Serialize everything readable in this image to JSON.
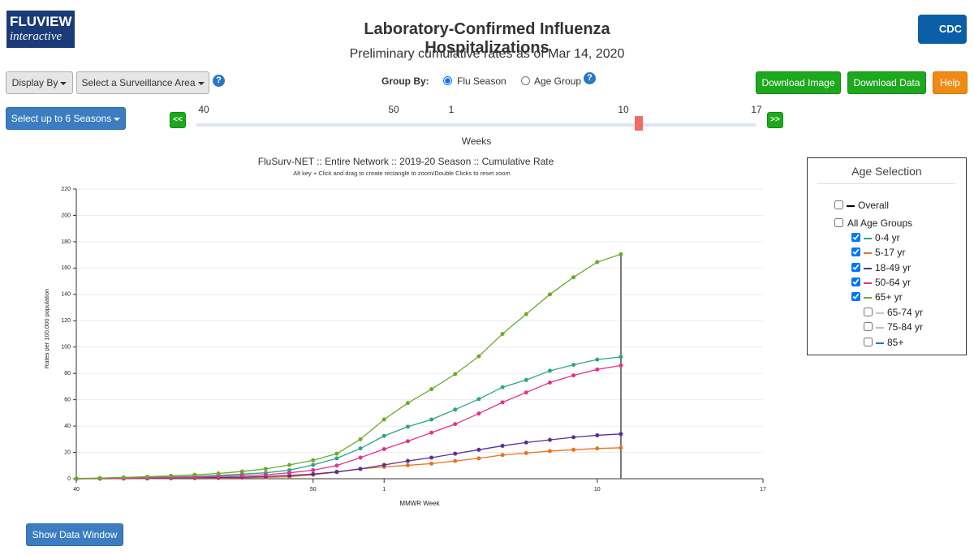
{
  "header": {
    "logo_title": "FLUVIEW",
    "logo_subtitle": "interactive",
    "title": "Laboratory-Confirmed Influenza Hospitalizations",
    "subtitle": "Preliminary cumulative rates as of Mar 14, 2020",
    "agency_logo": "CDC"
  },
  "help_icon": "?",
  "toolbar": {
    "display_by": "Display By",
    "surveillance_area": "Select a Surveillance Area",
    "group_by_label": "Group By:",
    "group_by_options": [
      {
        "label": "Flu Season",
        "selected": true
      },
      {
        "label": "Age Group",
        "selected": false
      }
    ],
    "download_image": "Download Image",
    "download_data": "Download Data",
    "help": "Help",
    "select_seasons": "Select up to 6 Seasons"
  },
  "slider": {
    "prev": "<<",
    "next": ">>",
    "labels": [
      "40",
      "50",
      "1",
      "10",
      "17"
    ],
    "axis_label": "Weeks"
  },
  "chart_data": {
    "type": "line",
    "title": "FluSurv-NET :: Entire Network :: 2019-20 Season :: Cumulative Rate",
    "subtitle": "Alt key + Click and drag to create rectangle to zoom/Double Clicks to reset zoom",
    "x_label": "MMWR Week",
    "y_label": "Rates per 100,000 population",
    "x": [
      0,
      1,
      2,
      3,
      4,
      5,
      6,
      7,
      8,
      9,
      10,
      11,
      12,
      13,
      14,
      15,
      16,
      17,
      18,
      19,
      20,
      21,
      22,
      23
    ],
    "xlim": [
      0,
      29
    ],
    "xticks": [
      {
        "value": 0,
        "label": "40"
      },
      {
        "value": 10,
        "label": "50"
      },
      {
        "value": 13,
        "label": "1"
      },
      {
        "value": 22,
        "label": "10"
      },
      {
        "value": 29,
        "label": "17"
      }
    ],
    "ylim": [
      0,
      220
    ],
    "yticks": [
      0,
      20,
      40,
      60,
      80,
      100,
      120,
      140,
      160,
      180,
      200,
      220
    ],
    "grid": true,
    "series": [
      {
        "name": "0-4 yr",
        "color": "#2ba585",
        "visible": true,
        "values": [
          0,
          0.3,
          0.6,
          1,
          1.3,
          1.8,
          2.5,
          3.5,
          4.5,
          6.5,
          10.5,
          15.5,
          23,
          32.5,
          39.5,
          45,
          52.5,
          60.5,
          69.5,
          75,
          82,
          86.5,
          90.5,
          92.5
        ]
      },
      {
        "name": "5-17 yr",
        "color": "#e8731c",
        "visible": true,
        "values": [
          0,
          0,
          0.1,
          0.2,
          0.3,
          0.4,
          0.5,
          0.7,
          1,
          1.5,
          3,
          5,
          7.5,
          9,
          10.2,
          11.5,
          13.5,
          15.5,
          18,
          19.5,
          21,
          22,
          23,
          23.5
        ]
      },
      {
        "name": "18-49 yr",
        "color": "#5b2f92",
        "visible": true,
        "values": [
          0,
          0.1,
          0.2,
          0.3,
          0.5,
          0.7,
          0.9,
          1.2,
          1.7,
          2.5,
          3.5,
          5.2,
          7.5,
          10.5,
          13.5,
          16,
          19,
          22,
          25,
          27.5,
          29.5,
          31.5,
          33,
          34
        ]
      },
      {
        "name": "50-64 yr",
        "color": "#e5318c",
        "visible": true,
        "values": [
          0,
          0.2,
          0.4,
          0.6,
          0.9,
          1.2,
          1.7,
          2.3,
          3,
          4.5,
          6.5,
          10,
          16,
          22.5,
          28.5,
          35,
          41.5,
          49.5,
          58,
          65.5,
          73,
          78.5,
          83,
          86
        ]
      },
      {
        "name": "65+ yr",
        "color": "#6aab2a",
        "visible": true,
        "values": [
          0.2,
          0.5,
          1,
          1.5,
          2.2,
          3,
          4,
          5.5,
          7.5,
          10.5,
          14,
          19,
          30,
          45,
          57.5,
          68,
          79.5,
          93,
          110,
          125,
          140,
          153,
          164.5,
          170.5
        ]
      }
    ]
  },
  "age_selection": {
    "title": "Age Selection",
    "overall": {
      "label": "Overall",
      "color": "#000000",
      "checked": false
    },
    "all_age_groups": {
      "label": "All Age Groups",
      "checked": false
    },
    "subgroups": [
      {
        "label": "65-74 yr",
        "color": "#a6cee3",
        "checked": false
      },
      {
        "label": "75-84 yr",
        "color": "#cab2d6",
        "checked": false
      },
      {
        "label": "85+",
        "color": "#1f78b4",
        "checked": false
      }
    ]
  },
  "show_data_window": "Show Data Window"
}
